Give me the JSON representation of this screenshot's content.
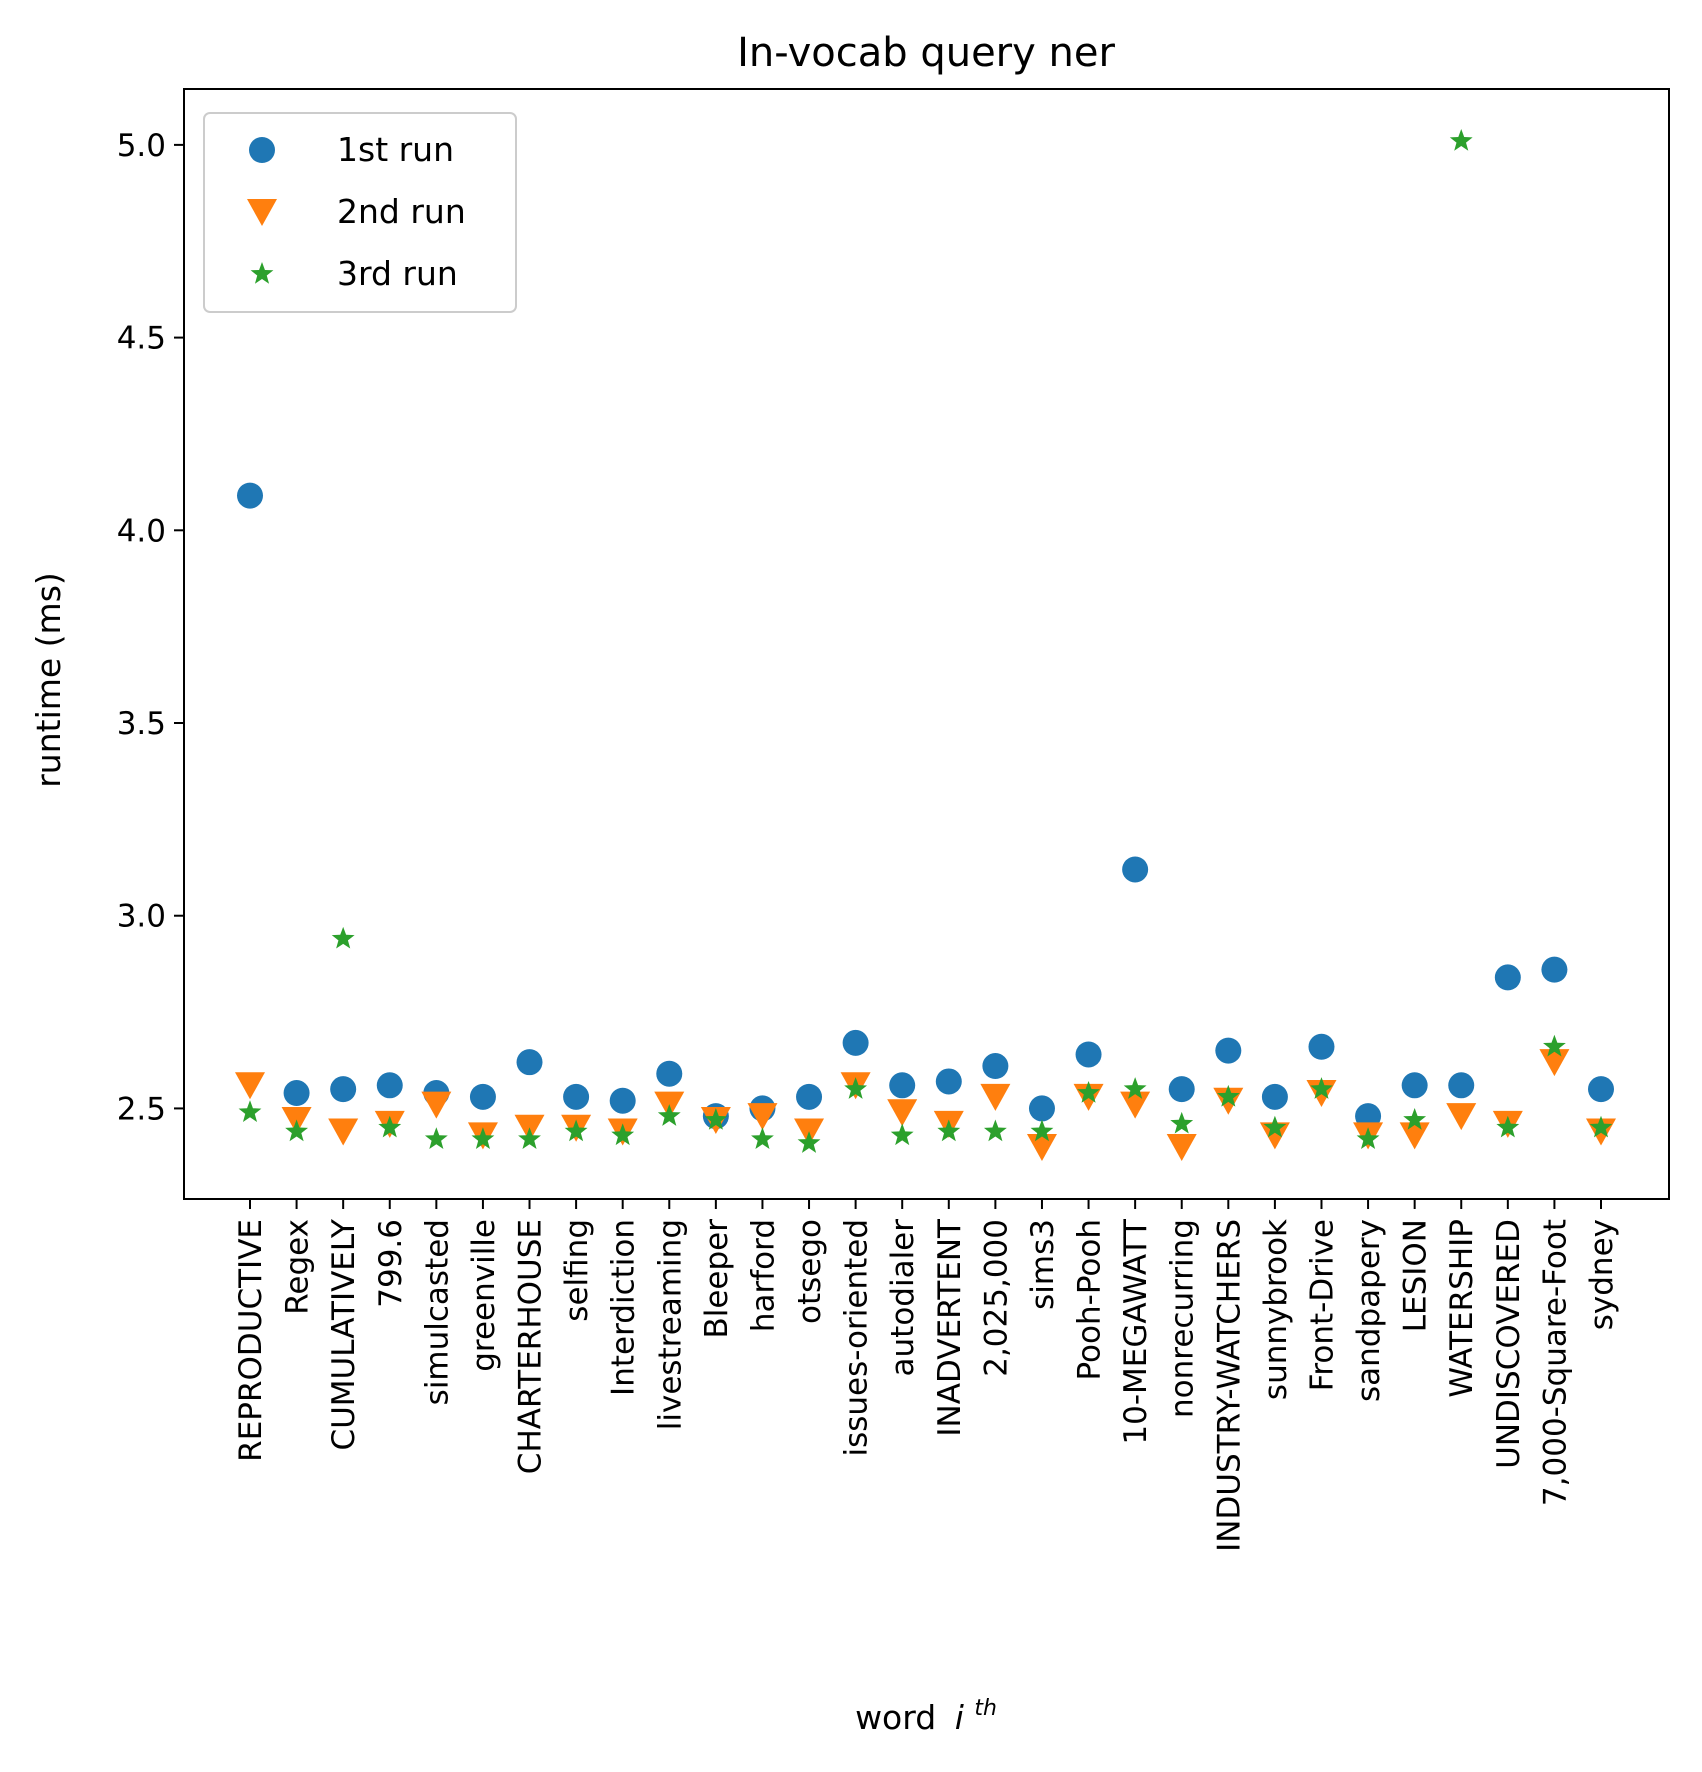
{
  "chart_data": {
    "type": "scatter",
    "title": "In-vocab query ner",
    "xlabel": "word",
    "xlabel_superscript": "th",
    "xlabel_var": "i",
    "ylabel": "runtime (ms)",
    "ylim": [
      2.265,
      5.145
    ],
    "yticks": [
      "2.5",
      "3.0",
      "3.5",
      "4.0",
      "4.5",
      "5.0"
    ],
    "ytick_values": [
      2.5,
      3.0,
      3.5,
      4.0,
      4.5,
      5.0
    ],
    "legend_position": "top-left",
    "grid": false,
    "categories": [
      "REPRODUCTIVE",
      "Regex",
      "CUMULATIVELY",
      "799.6",
      "simulcasted",
      "greenville",
      "CHARTERHOUSE",
      "selfing",
      "Interdiction",
      "livestreaming",
      "Bleeper",
      "harford",
      "otsego",
      "issues-oriented",
      "autodialer",
      "INADVERTENT",
      "2,025,000",
      "sims3",
      "Pooh-Pooh",
      "10-MEGAWATT",
      "nonrecurring",
      "INDUSTRY-WATCHERS",
      "sunnybrook",
      "Front-Drive",
      "sandpapery",
      "LESION",
      "WATERSHIP",
      "UNDISCOVERED",
      "7,000-Square-Foot",
      "sydney"
    ],
    "series": [
      {
        "name": "1st run",
        "marker": "circle",
        "color": "#1f77b4",
        "values": [
          4.09,
          2.54,
          2.55,
          2.56,
          2.54,
          2.53,
          2.62,
          2.53,
          2.52,
          2.59,
          2.48,
          2.5,
          2.53,
          2.67,
          2.56,
          2.57,
          2.61,
          2.5,
          2.64,
          3.12,
          2.55,
          2.65,
          2.53,
          2.66,
          2.48,
          2.56,
          2.56,
          2.84,
          2.86,
          2.55
        ]
      },
      {
        "name": "2nd run",
        "marker": "triangle-down",
        "color": "#ff7f0e",
        "values": [
          2.56,
          2.47,
          2.44,
          2.46,
          2.51,
          2.43,
          2.45,
          2.45,
          2.44,
          2.51,
          2.47,
          2.48,
          2.44,
          2.56,
          2.49,
          2.46,
          2.53,
          2.4,
          2.53,
          2.51,
          2.4,
          2.52,
          2.43,
          2.54,
          2.43,
          2.43,
          2.48,
          2.46,
          2.62,
          2.44
        ]
      },
      {
        "name": "3rd run",
        "marker": "star",
        "color": "#2ca02c",
        "values": [
          2.49,
          2.44,
          2.94,
          2.45,
          2.42,
          2.42,
          2.42,
          2.44,
          2.43,
          2.48,
          2.47,
          2.42,
          2.41,
          2.55,
          2.43,
          2.44,
          2.44,
          2.44,
          2.54,
          2.55,
          2.46,
          2.53,
          2.45,
          2.55,
          2.42,
          2.47,
          5.01,
          2.45,
          2.66,
          2.45
        ]
      }
    ]
  }
}
